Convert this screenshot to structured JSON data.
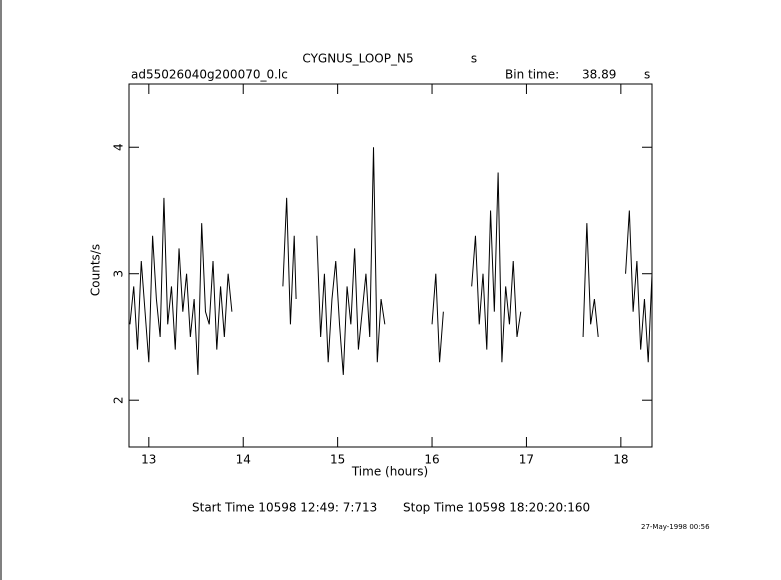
{
  "chart_data": {
    "type": "line",
    "title": "CYGNUS_LOOP_N5",
    "title_unit": "s",
    "file_name": "ad55026040g200070_0.lc",
    "bin_time_label": "Bin time:",
    "bin_time": "38.89",
    "bin_time_unit": "s",
    "x_label": "Time (hours)",
    "y_label": "Counts/s",
    "start_time": "Start Time 10598 12:49: 7:713",
    "stop_time": "Stop Time 10598 18:20:20:160",
    "date_stamp": "27-May-1998 00:56",
    "xlim": [
      12.79,
      18.33
    ],
    "xticks": [
      13,
      14,
      15,
      16,
      17,
      18
    ],
    "ylim": [
      1.63,
      4.5
    ],
    "yticks": [
      2,
      3,
      4
    ],
    "x": [
      12.8,
      12.84,
      12.88,
      12.92,
      12.96,
      13.0,
      13.04,
      13.08,
      13.12,
      13.16,
      13.2,
      13.24,
      13.28,
      13.32,
      13.36,
      13.4,
      13.44,
      13.48,
      13.52,
      13.56,
      13.6,
      13.64,
      13.68,
      13.72,
      13.76,
      13.8,
      13.84,
      13.88,
      14.1,
      14.42,
      14.46,
      14.5,
      14.54,
      14.56,
      14.67,
      14.78,
      14.82,
      14.86,
      14.9,
      14.94,
      14.98,
      15.02,
      15.06,
      15.1,
      15.14,
      15.18,
      15.22,
      15.26,
      15.3,
      15.34,
      15.38,
      15.42,
      15.46,
      15.5,
      15.75,
      16.0,
      16.04,
      16.08,
      16.12,
      16.27,
      16.42,
      16.46,
      16.5,
      16.54,
      16.58,
      16.62,
      16.66,
      16.7,
      16.74,
      16.78,
      16.82,
      16.86,
      16.9,
      16.94,
      17.3,
      17.6,
      17.64,
      17.68,
      17.72,
      17.76,
      17.9,
      18.05,
      18.09,
      18.13,
      18.17,
      18.21,
      18.25,
      18.29,
      18.33
    ],
    "series": [
      {
        "name": "Counts/s",
        "color": "#000000",
        "values": [
          2.6,
          2.9,
          2.4,
          3.1,
          2.7,
          2.3,
          3.3,
          2.8,
          2.5,
          3.6,
          2.6,
          2.9,
          2.4,
          3.2,
          2.7,
          3.0,
          2.5,
          2.8,
          2.2,
          3.4,
          2.7,
          2.6,
          3.1,
          2.4,
          2.9,
          2.5,
          3.0,
          2.7,
          null,
          2.9,
          3.6,
          2.6,
          3.3,
          2.8,
          null,
          3.3,
          2.5,
          3.0,
          2.3,
          2.8,
          3.1,
          2.6,
          2.2,
          2.9,
          2.6,
          3.2,
          2.4,
          2.7,
          3.0,
          2.5,
          4.0,
          2.3,
          2.8,
          2.6,
          null,
          2.6,
          3.0,
          2.3,
          2.7,
          null,
          2.9,
          3.3,
          2.6,
          3.0,
          2.4,
          3.5,
          2.7,
          3.8,
          2.3,
          2.9,
          2.6,
          3.1,
          2.5,
          2.7,
          null,
          2.5,
          3.4,
          2.6,
          2.8,
          2.5,
          null,
          3.0,
          3.5,
          2.7,
          3.1,
          2.4,
          2.8,
          2.3,
          3.0
        ]
      }
    ]
  }
}
